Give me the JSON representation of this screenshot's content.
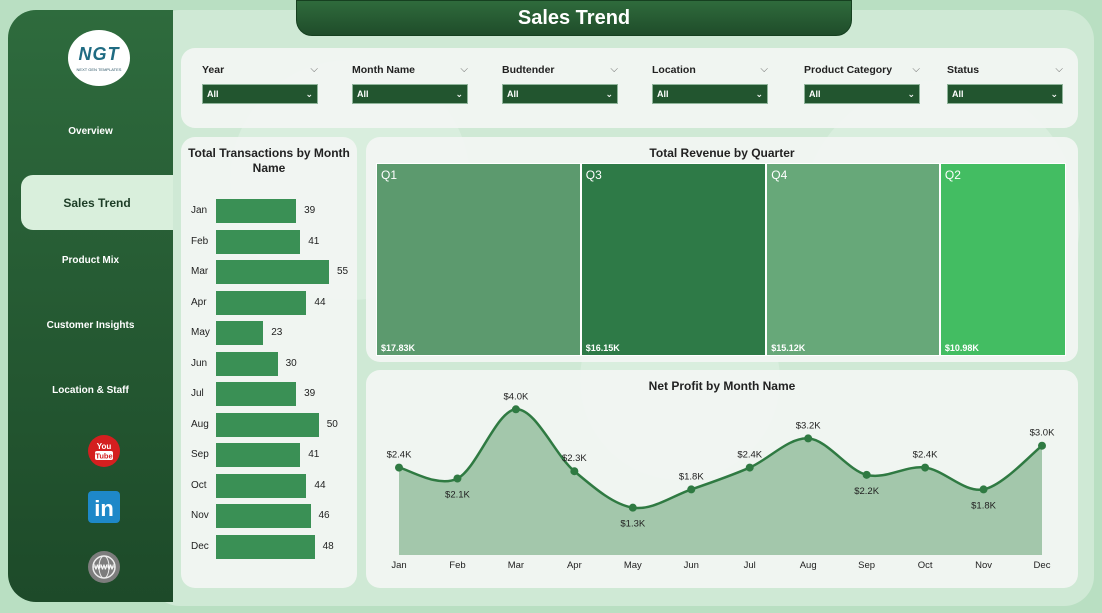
{
  "title": "Sales Trend",
  "logo": {
    "text": "NGT",
    "sub": "NEXT GEN TEMPLATES"
  },
  "nav": [
    {
      "label": "Overview"
    },
    {
      "label": "Sales Trend"
    },
    {
      "label": "Product Mix"
    },
    {
      "label": "Customer Insights"
    },
    {
      "label": "Location & Staff"
    }
  ],
  "social": [
    {
      "icon": "youtube-icon",
      "label": "You Tube"
    },
    {
      "icon": "linkedin-icon",
      "label": "in"
    },
    {
      "icon": "globe-icon",
      "label": "WWW"
    }
  ],
  "filters": [
    {
      "label": "Year",
      "value": "All"
    },
    {
      "label": "Month Name",
      "value": "All"
    },
    {
      "label": "Budtender",
      "value": "All"
    },
    {
      "label": "Location",
      "value": "All"
    },
    {
      "label": "Product Category",
      "value": "All"
    },
    {
      "label": "Status",
      "value": "All"
    }
  ],
  "chart_data": [
    {
      "type": "bar",
      "title": "Total Transactions by Month Name",
      "orientation": "horizontal",
      "categories": [
        "Jan",
        "Feb",
        "Mar",
        "Apr",
        "May",
        "Jun",
        "Jul",
        "Aug",
        "Sep",
        "Oct",
        "Nov",
        "Dec"
      ],
      "values": [
        39,
        41,
        55,
        44,
        23,
        30,
        39,
        50,
        41,
        44,
        46,
        48
      ],
      "color": "#3a9055"
    },
    {
      "type": "treemap",
      "title": "Total Revenue by Quarter",
      "categories": [
        "Q1",
        "Q3",
        "Q4",
        "Q2"
      ],
      "values": [
        17.83,
        16.15,
        15.12,
        10.98
      ],
      "labels": [
        "$17.83K",
        "$16.15K",
        "$15.12K",
        "$10.98K"
      ],
      "colors": [
        "#5c9a6e",
        "#2e7a47",
        "#67a879",
        "#43bd62"
      ]
    },
    {
      "type": "area",
      "title": "Net Profit by Month Name",
      "categories": [
        "Jan",
        "Feb",
        "Mar",
        "Apr",
        "May",
        "Jun",
        "Jul",
        "Aug",
        "Sep",
        "Oct",
        "Nov",
        "Dec"
      ],
      "values": [
        2.4,
        2.1,
        4.0,
        2.3,
        1.3,
        1.8,
        2.4,
        3.2,
        2.2,
        2.4,
        1.8,
        3.0
      ],
      "labels": [
        "$2.4K",
        "$2.1K",
        "$4.0K",
        "$2.3K",
        "$1.3K",
        "$1.8K",
        "$2.4K",
        "$3.2K",
        "$2.2K",
        "$2.4K",
        "$1.8K",
        "$3.0K"
      ],
      "ylim": [
        0,
        4.2
      ],
      "line_color": "#2f7a42",
      "fill_color": "#a3c7ab"
    }
  ]
}
